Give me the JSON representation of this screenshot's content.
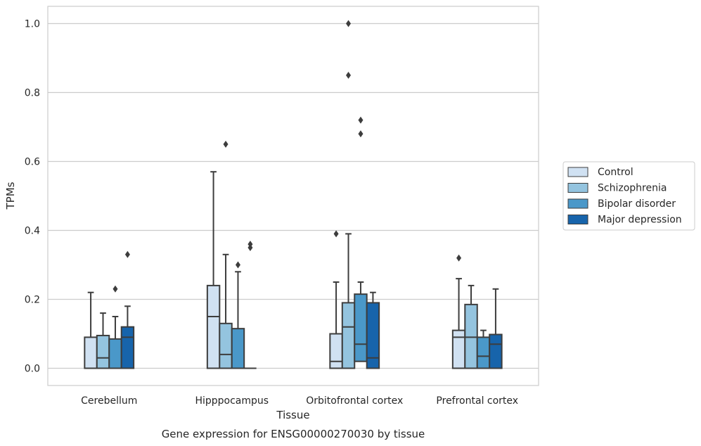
{
  "chart_data": {
    "type": "box",
    "xlabel": "Tissue",
    "ylabel": "TPMs",
    "caption": "Gene expression for ENSG00000270030 by tissue",
    "ylim": [
      -0.05,
      1.05
    ],
    "yticks": [
      "0.0",
      "0.2",
      "0.4",
      "0.6",
      "0.8",
      "1.0"
    ],
    "grid": "horizontal",
    "legend_position": "right",
    "categories": [
      "Cerebellum",
      "Hipppocampus",
      "Orbitofrontal cortex",
      "Prefrontal cortex"
    ],
    "series": [
      {
        "name": "Control",
        "color": "#d0e1f2",
        "boxes": [
          {
            "min": 0.0,
            "q1": 0.0,
            "median": 0.0,
            "q3": 0.09,
            "max": 0.22,
            "outliers": []
          },
          {
            "min": 0.0,
            "q1": 0.0,
            "median": 0.15,
            "q3": 0.24,
            "max": 0.57,
            "outliers": []
          },
          {
            "min": 0.0,
            "q1": 0.0,
            "median": 0.02,
            "q3": 0.1,
            "max": 0.25,
            "outliers": [
              0.39
            ]
          },
          {
            "min": 0.0,
            "q1": 0.0,
            "median": 0.09,
            "q3": 0.11,
            "max": 0.26,
            "outliers": [
              0.32
            ]
          }
        ]
      },
      {
        "name": "Schizophrenia",
        "color": "#94c4df",
        "boxes": [
          {
            "min": 0.0,
            "q1": 0.0,
            "median": 0.03,
            "q3": 0.095,
            "max": 0.16,
            "outliers": []
          },
          {
            "min": 0.0,
            "q1": 0.0,
            "median": 0.04,
            "q3": 0.13,
            "max": 0.33,
            "outliers": [
              0.65
            ]
          },
          {
            "min": 0.0,
            "q1": 0.0,
            "median": 0.12,
            "q3": 0.19,
            "max": 0.39,
            "outliers": [
              0.85,
              1.0
            ]
          },
          {
            "min": 0.0,
            "q1": 0.0,
            "median": 0.09,
            "q3": 0.185,
            "max": 0.24,
            "outliers": []
          }
        ]
      },
      {
        "name": "Bipolar disorder",
        "color": "#4a98c9",
        "boxes": [
          {
            "min": 0.0,
            "q1": 0.0,
            "median": 0.0,
            "q3": 0.085,
            "max": 0.15,
            "outliers": [
              0.23
            ]
          },
          {
            "min": 0.0,
            "q1": 0.0,
            "median": 0.0,
            "q3": 0.115,
            "max": 0.28,
            "outliers": [
              0.3
            ]
          },
          {
            "min": 0.0,
            "q1": 0.02,
            "median": 0.07,
            "q3": 0.215,
            "max": 0.25,
            "outliers": [
              0.68,
              0.72
            ]
          },
          {
            "min": 0.0,
            "q1": 0.0,
            "median": 0.035,
            "q3": 0.09,
            "max": 0.11,
            "outliers": []
          }
        ]
      },
      {
        "name": "Major depression",
        "color": "#1764ab",
        "boxes": [
          {
            "min": 0.0,
            "q1": 0.0,
            "median": 0.09,
            "q3": 0.12,
            "max": 0.18,
            "outliers": [
              0.33
            ]
          },
          {
            "min": 0.0,
            "q1": 0.0,
            "median": 0.0,
            "q3": 0.0,
            "max": 0.0,
            "outliers": [
              0.35,
              0.36
            ]
          },
          {
            "min": 0.0,
            "q1": 0.0,
            "median": 0.03,
            "q3": 0.19,
            "max": 0.22,
            "outliers": []
          },
          {
            "min": 0.0,
            "q1": 0.0,
            "median": 0.07,
            "q3": 0.098,
            "max": 0.23,
            "outliers": []
          }
        ]
      }
    ]
  }
}
